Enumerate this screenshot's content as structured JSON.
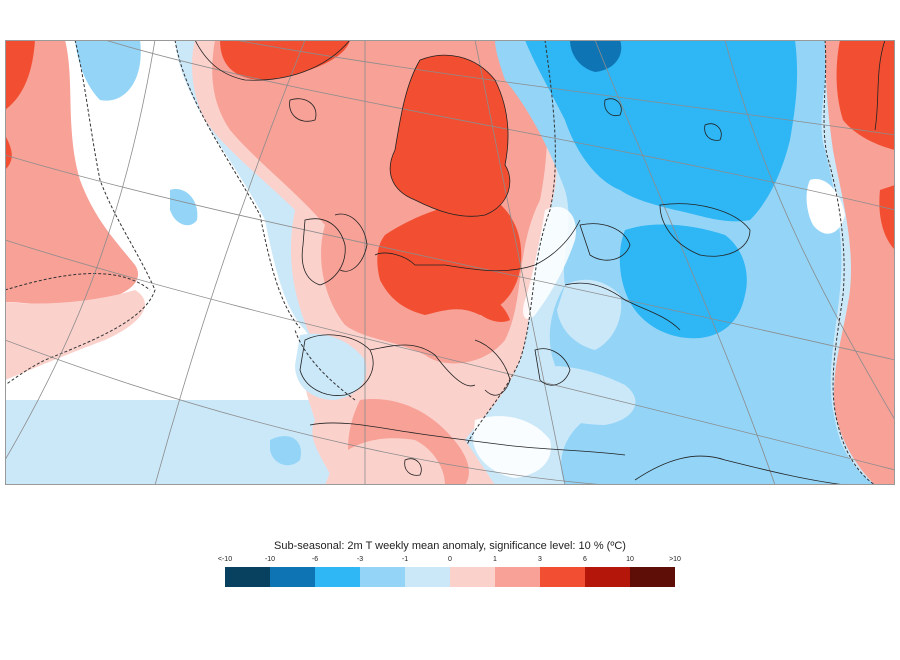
{
  "map": {
    "title": "Sub-seasonal: 2m T weekly mean anomaly, significance level: 10 % (ºC)",
    "legend_ticks": [
      "<-10",
      "-10",
      "-6",
      "-3",
      "-1",
      "0",
      "1",
      "3",
      "6",
      "10",
      ">10"
    ],
    "legend_colors": [
      "#08405f",
      "#0f74b3",
      "#2eb6f5",
      "#93d4f7",
      "#cbe8f9",
      "#fbd1cc",
      "#f7a197",
      "#f24f32",
      "#b4160a",
      "#5e0e06"
    ],
    "regions": {
      "ocean": "#cbe8f9",
      "warm_light": "#fbd1cc",
      "warm_med": "#f7a197",
      "warm_strong": "#f24f32",
      "cold_med": "#93d4f7",
      "cold_strong": "#2eb6f5",
      "cold_deep": "#0f74b3"
    }
  }
}
